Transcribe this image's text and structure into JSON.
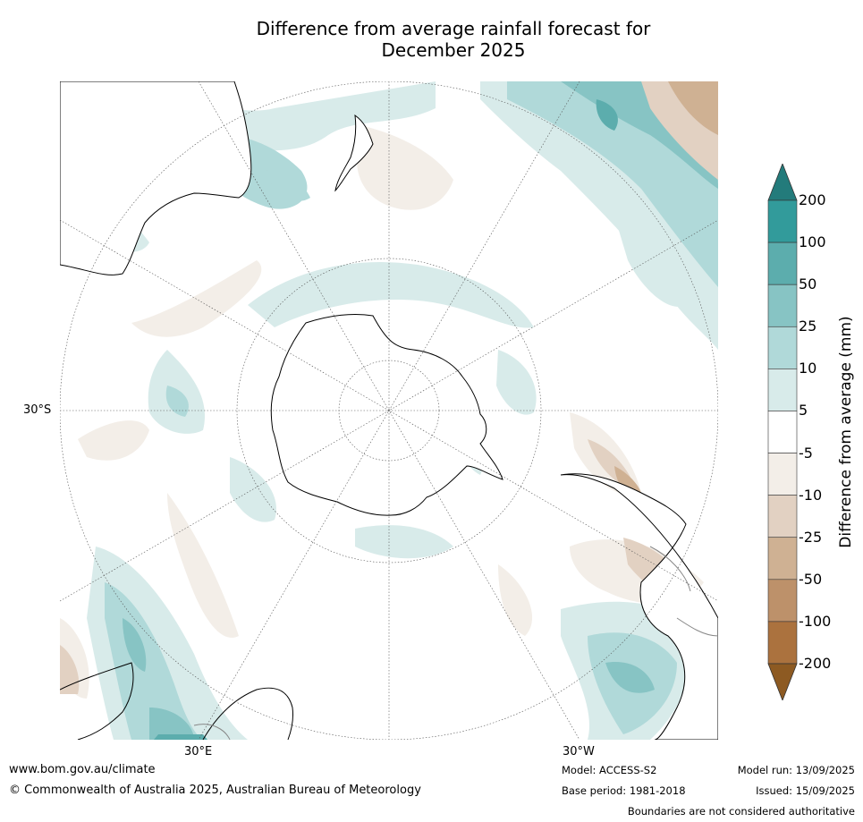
{
  "title_line1": "Difference from average rainfall forecast for",
  "title_line2": "December 2025",
  "graticule": {
    "lat_label": "30°S",
    "lon_labels": [
      "30°E",
      "30°W"
    ]
  },
  "colorbar": {
    "title": "Difference from average (mm)",
    "ticks": [
      "200",
      "100",
      "50",
      "25",
      "10",
      "5",
      "-5",
      "-10",
      "-25",
      "-50",
      "-100",
      "-200"
    ],
    "colors_top_to_bottom": [
      "#237b7b",
      "#329b9b",
      "#5cadad",
      "#87c4c4",
      "#b0d9d9",
      "#d8ebea",
      "#ffffff",
      "#f3eee8",
      "#e2d1c2",
      "#cfb193",
      "#bd916a",
      "#ab723e",
      "#8d5a22"
    ]
  },
  "footer": {
    "website": "www.bom.gov.au/climate",
    "copyright": "© Commonwealth of Australia 2025, Australian Bureau of Meteorology",
    "model": "Model: ACCESS-S2",
    "base_period": "Base period: 1981-2018",
    "model_run": "Model run: 13/09/2025",
    "issued": "Issued: 15/09/2025",
    "disclaimer": "Boundaries are not considered authoritative"
  }
}
